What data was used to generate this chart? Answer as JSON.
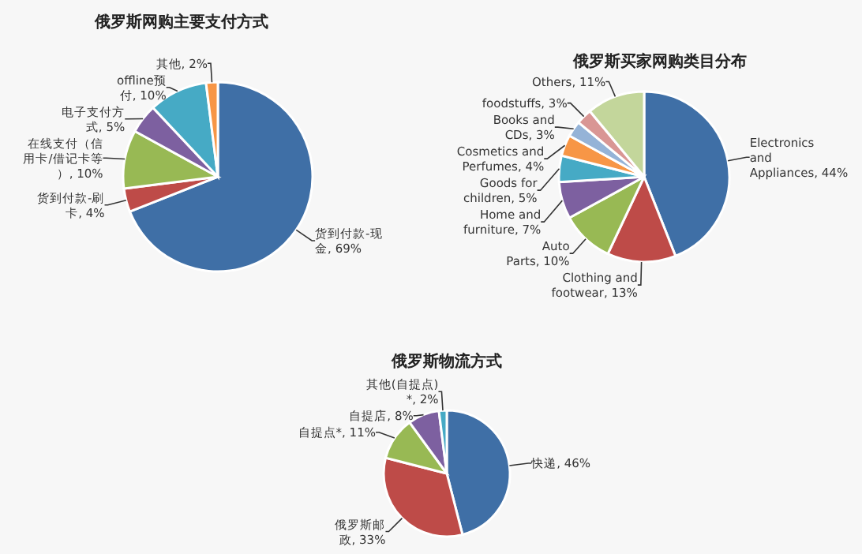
{
  "chart_data": [
    {
      "type": "pie",
      "title": "俄罗斯网购主要支付方式",
      "categories": [
        "货到付款-现金",
        "货到付款-刷卡",
        "在线支付（信用卡/借记卡等）",
        "电子支付方式",
        "offline预付",
        "其他"
      ],
      "values": [
        69,
        4,
        10,
        5,
        10,
        2
      ],
      "value_labels": [
        "69%",
        "4%",
        "10%",
        "5%",
        "10%",
        "2%"
      ],
      "colors": [
        "#3f6fa6",
        "#be4b48",
        "#98b954",
        "#7d60a0",
        "#46aac5",
        "#f79646"
      ]
    },
    {
      "type": "pie",
      "title": "俄罗斯买家网购类目分布",
      "categories": [
        "Electronics and Appliances",
        "Clothing and footwear",
        "Auto Parts",
        "Home and furniture",
        "Goods for children",
        "Cosmetics and Perfumes",
        "Books and CDs",
        "foodstuffs",
        "Others"
      ],
      "values": [
        44,
        13,
        10,
        7,
        5,
        4,
        3,
        3,
        11
      ],
      "value_labels": [
        "44%",
        "13%",
        "10%",
        "7%",
        "5%",
        "4%",
        "3%",
        "3%",
        "11%"
      ],
      "colors": [
        "#3f6fa6",
        "#be4b48",
        "#98b954",
        "#7d60a0",
        "#46aac5",
        "#f79646",
        "#95b3d7",
        "#d99694",
        "#c3d69b"
      ]
    },
    {
      "type": "pie",
      "title": "俄罗斯物流方式",
      "categories": [
        "快递",
        "俄罗斯邮政",
        "自提点*",
        "自提店",
        "其他(自提点)*"
      ],
      "values": [
        46,
        33,
        11,
        8,
        2
      ],
      "value_labels": [
        "46%",
        "33%",
        "11%",
        "8%",
        "2%"
      ],
      "colors": [
        "#3f6fa6",
        "#be4b48",
        "#98b954",
        "#7d60a0",
        "#46aac5"
      ]
    }
  ]
}
